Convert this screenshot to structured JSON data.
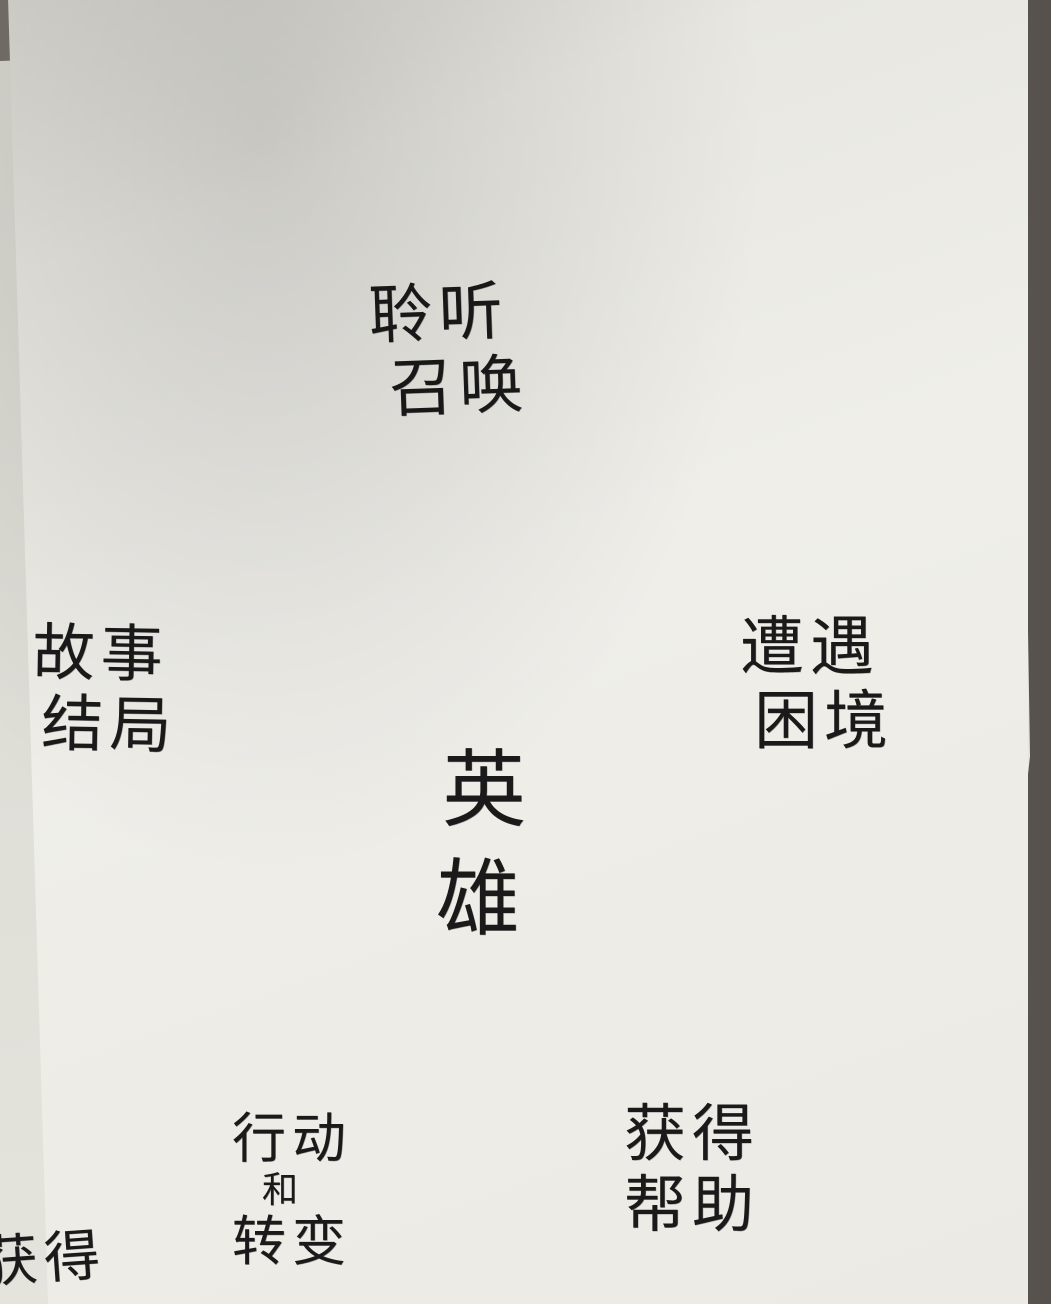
{
  "notes": {
    "top": {
      "line1": "聆听",
      "line2": "召唤"
    },
    "left": {
      "line1": "故事",
      "line2": "结局"
    },
    "right": {
      "line1": "遭遇",
      "line2": "困境"
    },
    "center": {
      "line1": "英",
      "line2": "雄"
    },
    "bottom_left": {
      "line1": "行动",
      "line2": "和",
      "line3": "转变"
    },
    "bottom_right": {
      "line1": "获得",
      "line2": "帮助"
    },
    "edge_left": {
      "line1": "获得"
    }
  }
}
